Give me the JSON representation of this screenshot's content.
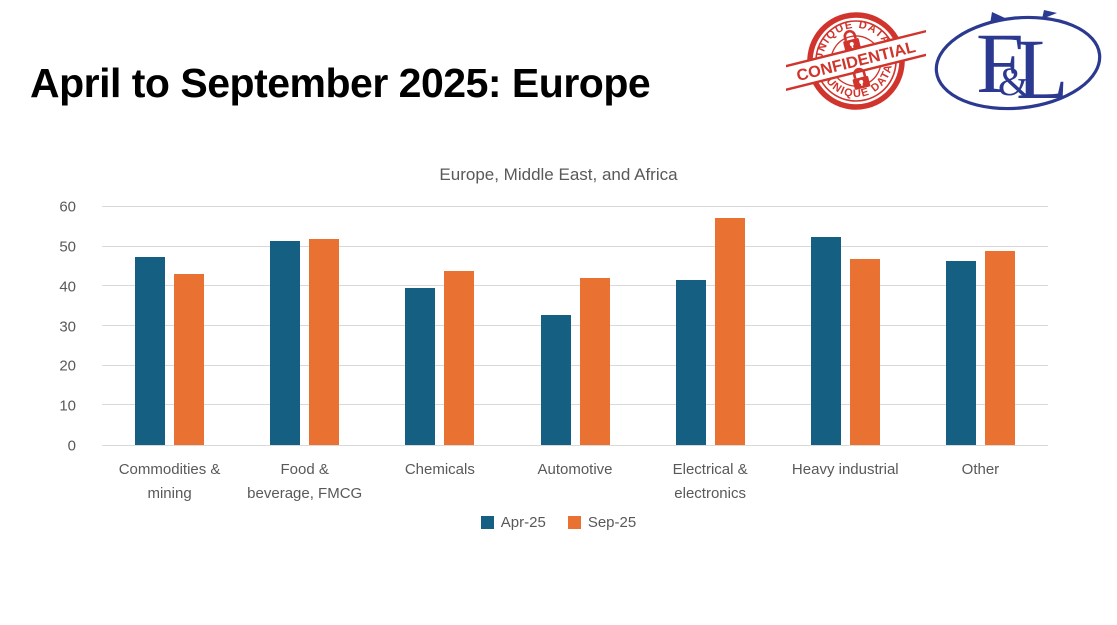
{
  "page": {
    "title": "April to September 2025: Europe"
  },
  "stamp": {
    "arc_top": "UNIQUE DATA",
    "arc_bottom": "UNIQUE DATA",
    "ribbon": "CONFIDENTIAL",
    "color": "#D0342C"
  },
  "logo": {
    "letter_f": "F",
    "ampersand": "&",
    "letter_l": "L",
    "color": "#2B3990"
  },
  "chart_data": {
    "type": "bar",
    "title": "Europe, Middle East, and Africa",
    "categories": [
      "Commodities &\nmining",
      "Food &\nbeverage, FMCG",
      "Chemicals",
      "Automotive",
      "Electrical &\nelectronics",
      "Heavy industrial",
      "Other"
    ],
    "series": [
      {
        "name": "Apr-25",
        "color": "#156082",
        "values": [
          47.3,
          51.2,
          39.4,
          32.6,
          41.5,
          52.3,
          46.1
        ]
      },
      {
        "name": "Sep-25",
        "color": "#E97132",
        "values": [
          42.9,
          51.6,
          43.6,
          42.0,
          57.1,
          46.8,
          48.8
        ]
      }
    ],
    "ylim": [
      0,
      60
    ],
    "yticks": [
      0,
      10,
      20,
      30,
      40,
      50,
      60
    ],
    "grid": true,
    "legend_position": "bottom",
    "axis_text_color": "#595959",
    "gridline_color": "#D9D9D9"
  }
}
